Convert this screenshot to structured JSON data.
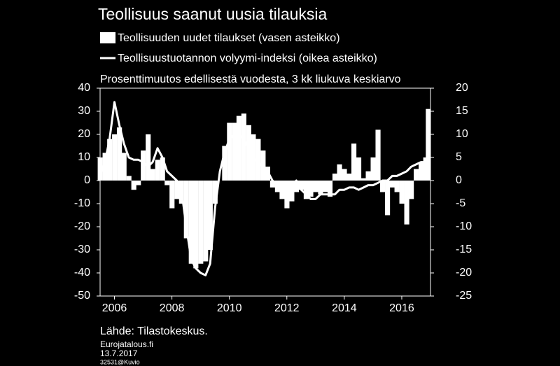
{
  "chart_data": {
    "type": "bar",
    "title": "Teollisuus saanut uusia tilauksia",
    "subtitle": "Prosenttimuutos edellisestä vuodesta, 3 kk liukuva keskiarvo",
    "source": "Lähde: Tilastokeskus.",
    "notes": [
      "Eurojatalous.fi",
      "13.7.2017",
      "32531@Kuvio"
    ],
    "x": [
      2005.5,
      2005.67,
      2005.83,
      2006,
      2006.17,
      2006.33,
      2006.5,
      2006.67,
      2006.83,
      2007,
      2007.17,
      2007.33,
      2007.5,
      2007.67,
      2007.83,
      2008,
      2008.17,
      2008.33,
      2008.5,
      2008.67,
      2008.83,
      2009,
      2009.17,
      2009.33,
      2009.5,
      2009.67,
      2009.83,
      2010,
      2010.17,
      2010.33,
      2010.5,
      2010.67,
      2010.83,
      2011,
      2011.17,
      2011.33,
      2011.5,
      2011.67,
      2011.83,
      2012,
      2012.17,
      2012.33,
      2012.5,
      2012.67,
      2012.83,
      2013,
      2013.17,
      2013.33,
      2013.5,
      2013.67,
      2013.83,
      2014,
      2014.17,
      2014.33,
      2014.5,
      2014.67,
      2014.83,
      2015,
      2015.17,
      2015.33,
      2015.5,
      2015.67,
      2015.83,
      2016,
      2016.17,
      2016.33,
      2016.5,
      2016.67,
      2016.83,
      2016.92
    ],
    "series": [
      {
        "name": "Teollisuuden uudet tilaukset (vasen asteikko)",
        "type": "bar",
        "color": "#ffffff",
        "values": [
          10,
          12,
          18,
          20,
          23,
          12,
          2,
          -4,
          -2,
          13,
          20,
          5,
          9,
          10,
          -2,
          -12,
          -8,
          -10,
          -25,
          -36,
          -38,
          -36,
          -35,
          -30,
          -10,
          0,
          15,
          25,
          25,
          28,
          29,
          24,
          20,
          18,
          13,
          6,
          -3,
          -5,
          -8,
          -12,
          -9,
          -5,
          -4,
          -8,
          -7,
          -5,
          -6,
          -5,
          -7,
          3,
          7,
          5,
          3,
          16,
          10,
          1,
          4,
          10,
          22,
          -5,
          -15,
          -3,
          -5,
          -10,
          -19,
          -8,
          5,
          8,
          10,
          31
        ]
      },
      {
        "name": "Teollisuustuotannon volyymi-indeksi (oikea asteikko)",
        "type": "line",
        "axis": "y2",
        "color": "#ffffff",
        "values": [
          1,
          4,
          9,
          17,
          12,
          8,
          5,
          4.5,
          4.5,
          4,
          3,
          4,
          7,
          5,
          2,
          1,
          0,
          -2,
          -10,
          -17,
          -19,
          -20,
          -20.5,
          -18,
          -6,
          2,
          6,
          9,
          10,
          10,
          9,
          7,
          5,
          4,
          3,
          2,
          0,
          -1,
          -2,
          -2,
          -1,
          0,
          -2,
          -3,
          -4,
          -4,
          -3,
          -3,
          -3,
          -3,
          -2,
          -2,
          -1.5,
          -1.5,
          -2,
          -1.5,
          -1,
          -1,
          -0.5,
          0,
          0,
          1,
          1,
          1.5,
          2,
          3,
          3.5,
          4,
          4,
          3.5
        ]
      }
    ],
    "xlim": [
      2005.5,
      2017
    ],
    "xticks": [
      2006,
      2008,
      2010,
      2012,
      2014,
      2016
    ],
    "ylim": [
      -50,
      40
    ],
    "yticks": [
      -50,
      -40,
      -30,
      -20,
      -10,
      0,
      10,
      20,
      30,
      40
    ],
    "y2lim": [
      -25,
      20
    ],
    "y2ticks": [
      -25,
      -20,
      -15,
      -10,
      -5,
      0,
      5,
      10,
      15,
      20
    ],
    "background": "#000000"
  }
}
